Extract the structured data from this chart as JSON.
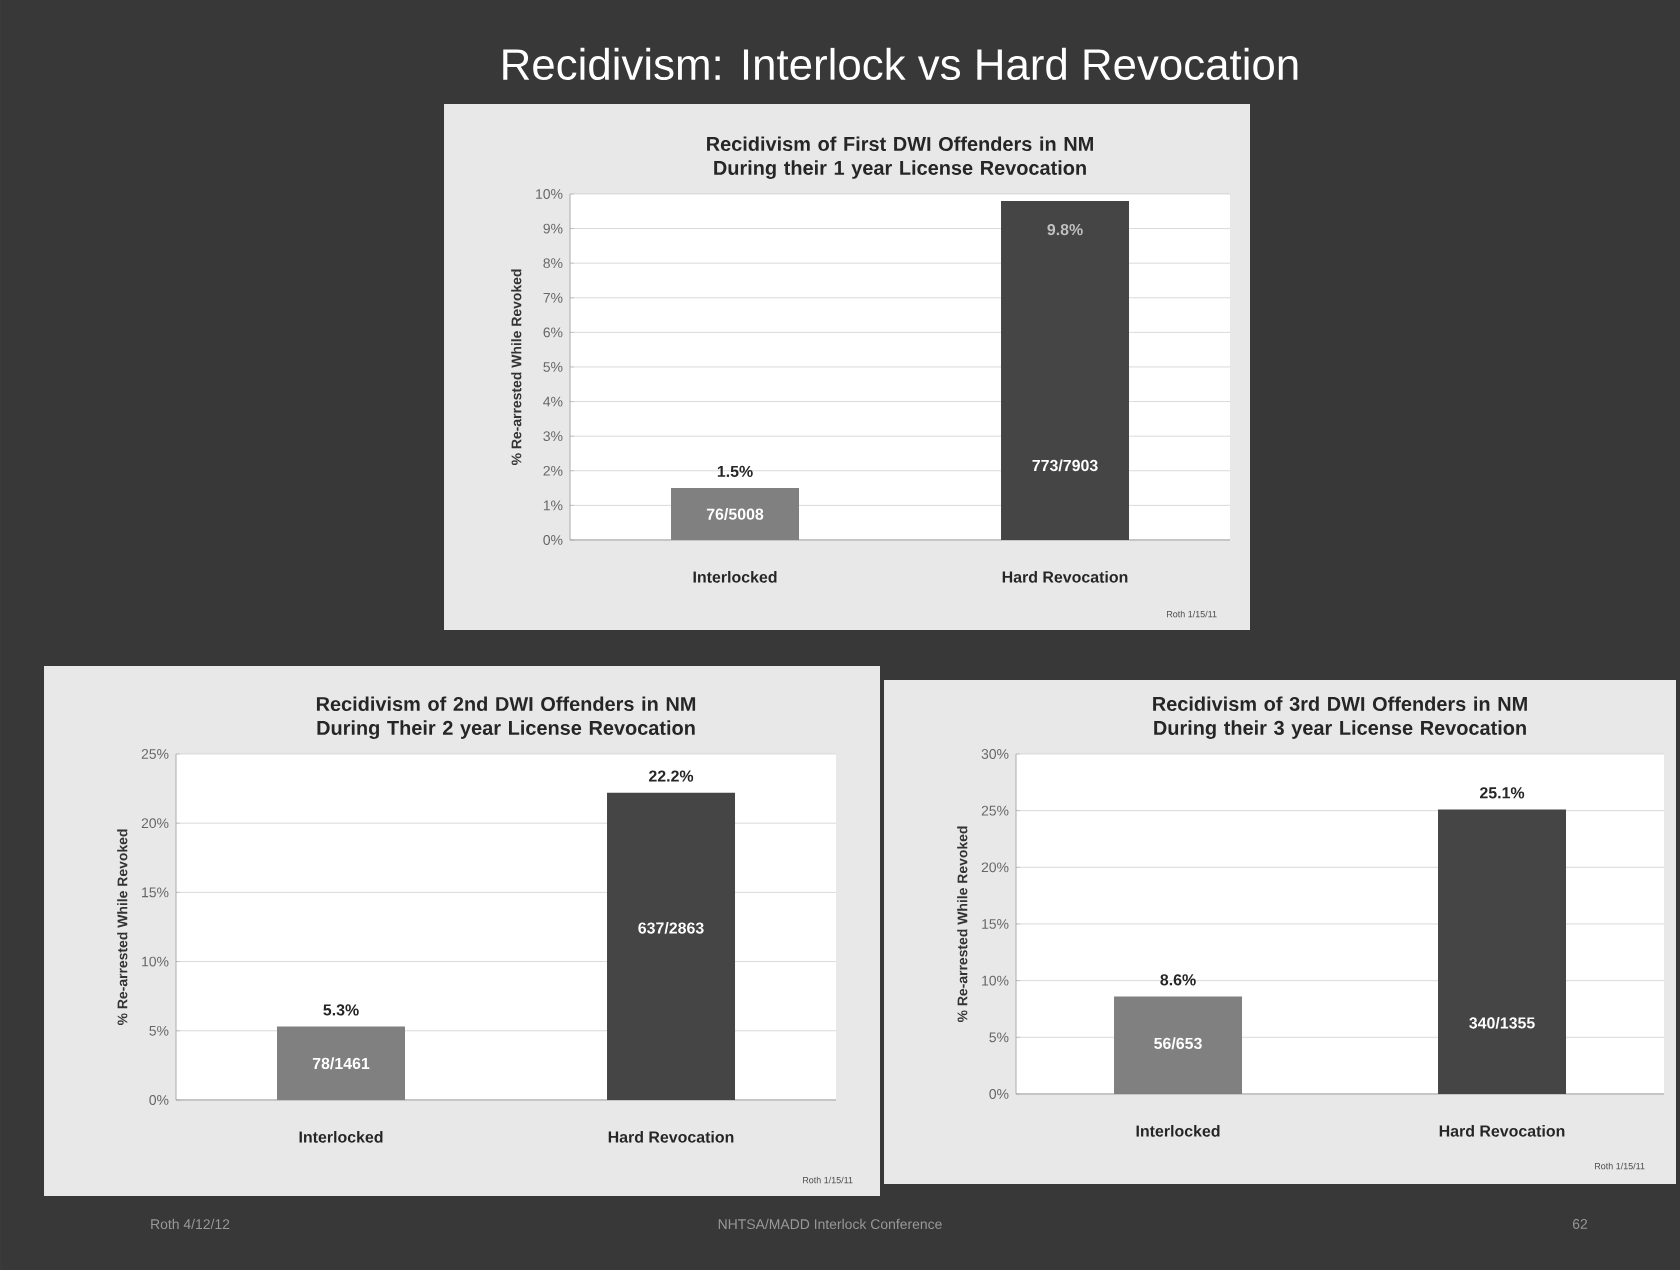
{
  "chart_data": [
    {
      "type": "bar",
      "title": "Recidivism of First DWI Offenders in NM During their 1 year License Revocation",
      "ylabel": "% Re-arrested While Revoked",
      "categories": [
        "Interlocked",
        "Hard Revocation"
      ],
      "values": [
        1.5,
        9.8
      ],
      "colors": [
        "#808080",
        "#454545"
      ],
      "value_labels": [
        "1.5%",
        "9.8%"
      ],
      "ylim": [
        0,
        10
      ],
      "yticks": [
        {
          "value": 0,
          "label": "0%"
        },
        {
          "value": 1,
          "label": "1%"
        },
        {
          "value": 2,
          "label": "2%"
        },
        {
          "value": 3,
          "label": "3%"
        },
        {
          "value": 4,
          "label": "4%"
        },
        {
          "value": 5,
          "label": "5%"
        },
        {
          "value": 6,
          "label": "6%"
        },
        {
          "value": 7,
          "label": "7%"
        },
        {
          "value": 8,
          "label": "8%"
        },
        {
          "value": 9,
          "label": "9%"
        },
        {
          "value": 10,
          "label": "10%"
        }
      ],
      "grid": "y",
      "annotations": [
        "Recidivism: Interlock vs Hard Revocation",
        "Roth 1/15/11",
        "76/5008",
        "773/7903"
      ]
    },
    {
      "type": "bar",
      "title": "Recidivism of 2nd DWI Offenders in NM During Their 2 year License Revocation",
      "ylabel": "% Re-arrested While Revoked",
      "categories": [
        "Interlocked",
        "Hard Revocation"
      ],
      "values": [
        5.3,
        22.2
      ],
      "colors": [
        "#808080",
        "#454545"
      ],
      "value_labels": [
        "5.3%",
        "22.2%"
      ],
      "ylim": [
        0,
        25
      ],
      "yticks": [
        {
          "value": 0,
          "label": "0%"
        },
        {
          "value": 5,
          "label": "5%"
        },
        {
          "value": 10,
          "label": "10%"
        },
        {
          "value": 15,
          "label": "15%"
        },
        {
          "value": 20,
          "label": "20%"
        },
        {
          "value": 25,
          "label": "25%"
        }
      ],
      "grid": "y",
      "annotations": [
        "Roth 1/15/11",
        "78/1461",
        "637/2863"
      ]
    },
    {
      "type": "bar",
      "title": "Recidivism of 3rd DWI Offenders in NM During their 3 year License Revocation",
      "ylabel": "% Re-arrested While Revoked",
      "categories": [
        "Interlocked",
        "Hard Revocation"
      ],
      "values": [
        8.6,
        25.1
      ],
      "colors": [
        "#808080",
        "#454545"
      ],
      "value_labels": [
        "8.6%",
        "25.1%"
      ],
      "ylim": [
        0,
        30
      ],
      "yticks": [
        {
          "value": 0,
          "label": "0%"
        },
        {
          "value": 5,
          "label": "5%"
        },
        {
          "value": 10,
          "label": "10%"
        },
        {
          "value": 15,
          "label": "15%"
        },
        {
          "value": 20,
          "label": "20%"
        },
        {
          "value": 25,
          "label": "25%"
        },
        {
          "value": 30,
          "label": "30%"
        }
      ],
      "grid": "y",
      "annotations": [
        "Roth 1/15/11",
        "Roth 4/12/12",
        "NHTSA/MADD Interlock Conference",
        "62",
        "56/653",
        "340/1355"
      ]
    }
  ]
}
